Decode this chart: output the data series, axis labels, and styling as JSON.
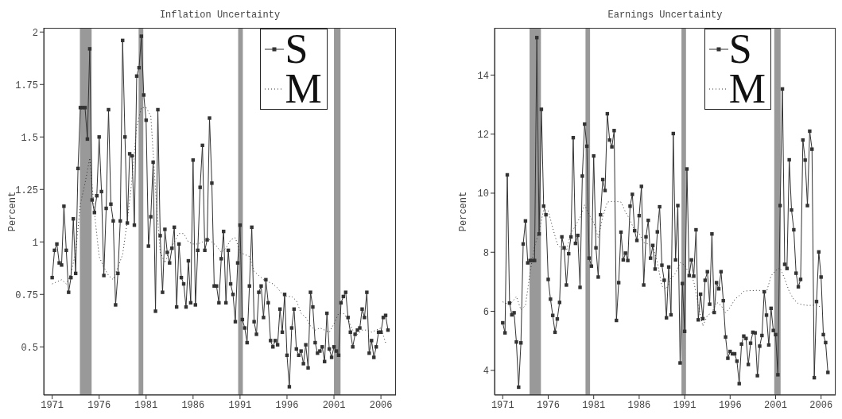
{
  "chart_data": [
    {
      "type": "line",
      "title": "Inflation Uncertainty",
      "ylabel": "Percent",
      "legend": "top",
      "x": [
        1971,
        1971.25,
        1971.5,
        1971.75,
        1972,
        1972.25,
        1972.5,
        1972.75,
        1973,
        1973.25,
        1973.5,
        1973.75,
        1974,
        1974.25,
        1974.5,
        1974.75,
        1975,
        1975.25,
        1975.5,
        1975.75,
        1976,
        1976.25,
        1976.5,
        1976.75,
        1977,
        1977.25,
        1977.5,
        1977.75,
        1978,
        1978.25,
        1978.5,
        1978.75,
        1979,
        1979.25,
        1979.5,
        1979.75,
        1980,
        1980.25,
        1980.5,
        1980.75,
        1981,
        1981.25,
        1981.5,
        1981.75,
        1982,
        1982.25,
        1982.5,
        1982.75,
        1983,
        1983.25,
        1983.5,
        1983.75,
        1984,
        1984.25,
        1984.5,
        1984.75,
        1985,
        1985.25,
        1985.5,
        1985.75,
        1986,
        1986.25,
        1986.5,
        1986.75,
        1987,
        1987.25,
        1987.5,
        1987.75,
        1988,
        1988.25,
        1988.5,
        1988.75,
        1989,
        1989.25,
        1989.5,
        1989.75,
        1990,
        1990.25,
        1990.5,
        1990.75,
        1991,
        1991.25,
        1991.5,
        1991.75,
        1992,
        1992.25,
        1992.5,
        1992.75,
        1993,
        1993.25,
        1993.5,
        1993.75,
        1994,
        1994.25,
        1994.5,
        1994.75,
        1995,
        1995.25,
        1995.5,
        1995.75,
        1996,
        1996.25,
        1996.5,
        1996.75,
        1997,
        1997.25,
        1997.5,
        1997.75,
        1998,
        1998.25,
        1998.5,
        1998.75,
        1999,
        1999.25,
        1999.5,
        1999.75,
        2000,
        2000.25,
        2000.5,
        2000.75,
        2001,
        2001.25,
        2001.5,
        2001.75,
        2002,
        2002.25,
        2002.5,
        2002.75,
        2003,
        2003.25,
        2003.5,
        2003.75,
        2004,
        2004.25,
        2004.5,
        2004.75,
        2005,
        2005.25,
        2005.5,
        2005.75,
        2006,
        2006.25,
        2006.5,
        2006.75
      ],
      "series": [
        {
          "name": "S",
          "color": "#333333",
          "marker": "square",
          "line_style": "solid",
          "values": [
            0.83,
            0.96,
            0.99,
            0.9,
            0.89,
            1.17,
            0.96,
            0.76,
            0.83,
            1.11,
            0.85,
            1.35,
            1.64,
            1.64,
            1.64,
            1.49,
            1.92,
            1.2,
            1.14,
            1.22,
            1.5,
            1.24,
            0.84,
            1.16,
            1.63,
            1.18,
            1.1,
            0.7,
            0.85,
            1.1,
            1.96,
            1.5,
            1.09,
            1.42,
            1.41,
            1.08,
            1.79,
            1.83,
            1.98,
            1.7,
            1.58,
            0.98,
            1.12,
            1.38,
            0.67,
            1.63,
            1.03,
            0.76,
            1.06,
            0.95,
            0.9,
            0.97,
            1.07,
            0.69,
            0.99,
            0.83,
            0.8,
            0.69,
            0.91,
            0.71,
            1.39,
            0.7,
            0.96,
            1.26,
            1.46,
            0.96,
            1.01,
            1.59,
            1.28,
            0.79,
            0.79,
            0.71,
            0.92,
            1.05,
            0.71,
            0.96,
            0.8,
            0.75,
            0.62,
            0.9,
            1.08,
            0.63,
            0.59,
            0.52,
            0.79,
            1.07,
            0.62,
            0.56,
            0.76,
            0.79,
            0.64,
            0.82,
            0.71,
            0.53,
            0.5,
            0.53,
            0.51,
            0.68,
            0.57,
            0.75,
            0.46,
            0.31,
            0.59,
            0.68,
            0.49,
            0.46,
            0.48,
            0.42,
            0.51,
            0.4,
            0.76,
            0.69,
            0.52,
            0.47,
            0.48,
            0.5,
            0.43,
            0.66,
            0.49,
            0.45,
            0.5,
            0.48,
            0.46,
            0.71,
            0.74,
            0.76,
            0.64,
            0.57,
            0.5,
            0.56,
            0.58,
            0.59,
            0.68,
            0.64,
            0.76,
            0.47,
            0.53,
            0.45,
            0.5,
            0.57,
            0.57,
            0.64,
            0.65,
            0.58
          ]
        },
        {
          "name": "M",
          "color": "#333333",
          "marker": "none",
          "line_style": "dotted",
          "x": [
            1971,
            1971.5,
            1972,
            1972.5,
            1973,
            1973.5,
            1974,
            1974.5,
            1975,
            1975.5,
            1976,
            1976.5,
            1977,
            1977.5,
            1978,
            1978.5,
            1979,
            1979.5,
            1980,
            1980.5,
            1981,
            1981.5,
            1982,
            1982.5,
            1983,
            1983.5,
            1984,
            1984.5,
            1985,
            1985.5,
            1986,
            1986.5,
            1987,
            1987.5,
            1988,
            1988.5,
            1989,
            1989.5,
            1990,
            1990.5,
            1991,
            1991.5,
            1992,
            1992.5,
            1993,
            1993.5,
            1994,
            1994.5,
            1995,
            1995.5,
            1996,
            1996.5,
            1997,
            1997.5,
            1998,
            1998.5,
            1999,
            1999.5,
            2000,
            2000.5,
            2001,
            2001.5,
            2002,
            2002.5,
            2003,
            2003.5,
            2004,
            2004.5,
            2005,
            2005.5,
            2006,
            2006.5
          ],
          "values": [
            0.8,
            0.81,
            0.82,
            0.8,
            0.85,
            0.95,
            1.18,
            1.28,
            1.4,
            1.14,
            0.93,
            0.88,
            0.84,
            0.82,
            0.88,
            0.94,
            1.1,
            1.3,
            1.55,
            1.64,
            1.64,
            1.6,
            1.25,
            0.95,
            0.9,
            0.96,
            1.0,
            1.04,
            1.04,
            1.0,
            0.99,
            0.99,
            1.0,
            1.02,
            1.0,
            0.98,
            0.95,
            0.97,
            1.01,
            1.02,
            0.95,
            0.94,
            0.93,
            0.86,
            0.84,
            0.82,
            0.81,
            0.8,
            0.78,
            0.75,
            0.74,
            0.74,
            0.72,
            0.66,
            0.64,
            0.6,
            0.58,
            0.59,
            0.58,
            0.57,
            0.61,
            0.66,
            0.66,
            0.63,
            0.58,
            0.56,
            0.58,
            0.58,
            0.57,
            0.58,
            0.59,
            0.52
          ]
        }
      ],
      "xlim": [
        1970.1,
        2007.6
      ],
      "xticks": [
        1971,
        1976,
        1981,
        1986,
        1991,
        1996,
        2001,
        2006
      ],
      "ylim": [
        0.27,
        2.02
      ],
      "yticks": [
        0.5,
        0.75,
        1,
        1.25,
        1.5,
        1.75,
        2
      ],
      "bands": [
        {
          "axis": "x",
          "from": 1973.95,
          "to": 1975.2,
          "color": "#999999"
        },
        {
          "axis": "x",
          "from": 1980.2,
          "to": 1980.7,
          "color": "#999999"
        },
        {
          "axis": "x",
          "from": 1990.8,
          "to": 1991.3,
          "color": "#999999"
        },
        {
          "axis": "x",
          "from": 2001.0,
          "to": 2001.7,
          "color": "#999999"
        }
      ]
    },
    {
      "type": "line",
      "title": "Earnings Uncertainty",
      "ylabel": "Percent",
      "legend": "top",
      "x": [
        1971,
        1971.25,
        1971.5,
        1971.75,
        1972,
        1972.25,
        1972.5,
        1972.75,
        1973,
        1973.25,
        1973.5,
        1973.75,
        1974,
        1974.25,
        1974.5,
        1974.75,
        1975,
        1975.25,
        1975.5,
        1975.75,
        1976,
        1976.25,
        1976.5,
        1976.75,
        1977,
        1977.25,
        1977.5,
        1977.75,
        1978,
        1978.25,
        1978.5,
        1978.75,
        1979,
        1979.25,
        1979.5,
        1979.75,
        1980,
        1980.25,
        1980.5,
        1980.75,
        1981,
        1981.25,
        1981.5,
        1981.75,
        1982,
        1982.25,
        1982.5,
        1982.75,
        1983,
        1983.25,
        1983.5,
        1983.75,
        1984,
        1984.25,
        1984.5,
        1984.75,
        1985,
        1985.25,
        1985.5,
        1985.75,
        1986,
        1986.25,
        1986.5,
        1986.75,
        1987,
        1987.25,
        1987.5,
        1987.75,
        1988,
        1988.25,
        1988.5,
        1988.75,
        1989,
        1989.25,
        1989.5,
        1989.75,
        1990,
        1990.25,
        1990.5,
        1990.75,
        1991,
        1991.25,
        1991.5,
        1991.75,
        1992,
        1992.25,
        1992.5,
        1992.75,
        1993,
        1993.25,
        1993.5,
        1993.75,
        1994,
        1994.25,
        1994.5,
        1994.75,
        1995,
        1995.25,
        1995.5,
        1995.75,
        1996,
        1996.25,
        1996.5,
        1996.75,
        1997,
        1997.25,
        1997.5,
        1997.75,
        1998,
        1998.25,
        1998.5,
        1998.75,
        1999,
        1999.25,
        1999.5,
        1999.75,
        2000,
        2000.25,
        2000.5,
        2000.75,
        2001,
        2001.25,
        2001.5,
        2001.75,
        2002,
        2002.25,
        2002.5,
        2002.75,
        2003,
        2003.25,
        2003.5,
        2003.75,
        2004,
        2004.25,
        2004.5,
        2004.75,
        2005,
        2005.25,
        2005.5,
        2005.75,
        2006,
        2006.25,
        2006.5,
        2006.75
      ],
      "series": [
        {
          "name": "S",
          "color": "#333333",
          "marker": "square",
          "line_style": "solid",
          "values": [
            5.61,
            5.27,
            10.62,
            6.28,
            5.88,
            5.95,
            4.96,
            3.43,
            4.93,
            8.28,
            9.06,
            7.64,
            7.72,
            7.72,
            7.72,
            15.27,
            8.62,
            12.84,
            9.56,
            9.27,
            7.08,
            6.41,
            5.86,
            5.29,
            5.74,
            6.3,
            8.52,
            8.15,
            6.89,
            7.95,
            8.52,
            11.88,
            8.3,
            8.57,
            6.81,
            10.58,
            12.34,
            11.59,
            7.8,
            7.53,
            11.26,
            8.15,
            7.16,
            9.27,
            10.46,
            10.09,
            12.69,
            11.8,
            11.57,
            12.12,
            5.69,
            6.97,
            8.68,
            7.74,
            7.97,
            7.72,
            9.56,
            9.96,
            8.73,
            8.4,
            9.24,
            10.23,
            6.89,
            8.52,
            9.08,
            7.8,
            8.23,
            7.43,
            8.69,
            9.54,
            7.56,
            7.05,
            5.78,
            7.5,
            5.88,
            12.02,
            7.74,
            9.58,
            4.25,
            6.94,
            5.32,
            10.82,
            7.21,
            7.74,
            7.19,
            8.76,
            5.71,
            6.58,
            5.75,
            7.05,
            7.34,
            6.24,
            8.62,
            5.96,
            6.97,
            6.76,
            7.34,
            6.36,
            5.13,
            4.41,
            4.64,
            4.56,
            4.56,
            4.31,
            3.55,
            4.89,
            5.16,
            5.08,
            4.2,
            4.92,
            5.29,
            5.27,
            3.82,
            4.82,
            5.18,
            6.66,
            5.87,
            4.86,
            6.1,
            5.35,
            5.21,
            3.85,
            9.58,
            13.53,
            7.59,
            7.45,
            11.13,
            9.43,
            8.76,
            7.29,
            6.83,
            7.08,
            11.8,
            11.12,
            9.58,
            12.1,
            11.49,
            3.75,
            6.33,
            8.01,
            7.16,
            5.21,
            4.94,
            3.93
          ]
        },
        {
          "name": "M",
          "color": "#333333",
          "marker": "none",
          "line_style": "dotted",
          "x": [
            1971,
            1971.5,
            1972,
            1972.5,
            1973,
            1973.5,
            1974,
            1974.5,
            1975,
            1975.5,
            1976,
            1976.5,
            1977,
            1977.5,
            1978,
            1978.5,
            1979,
            1979.5,
            1980,
            1980.5,
            1981,
            1981.5,
            1982,
            1982.5,
            1983,
            1983.5,
            1984,
            1984.5,
            1985,
            1985.5,
            1986,
            1986.5,
            1987,
            1987.5,
            1988,
            1988.5,
            1989,
            1989.5,
            1990,
            1990.5,
            1991,
            1991.5,
            1992,
            1992.5,
            1993,
            1993.5,
            1994,
            1994.5,
            1995,
            1995.5,
            1996,
            1996.5,
            1997,
            1997.5,
            1998,
            1998.5,
            1999,
            1999.5,
            2000,
            2000.5,
            2001,
            2001.5,
            2002,
            2002.5,
            2003,
            2003.5,
            2004,
            2004.5,
            2005,
            2005.5,
            2006
          ],
          "values": [
            6.32,
            6.25,
            6.3,
            6.5,
            6.05,
            6.2,
            7.3,
            8.2,
            8.7,
            9.45,
            9.4,
            8.82,
            8.28,
            8.1,
            8.05,
            8.64,
            8.9,
            9.18,
            9.6,
            9.27,
            9.0,
            8.5,
            9.2,
            9.7,
            9.72,
            9.72,
            9.7,
            9.36,
            9.09,
            8.73,
            8.64,
            8.33,
            8.28,
            8.2,
            7.65,
            6.85,
            6.76,
            7.11,
            7.29,
            7.65,
            7.56,
            7.29,
            7.02,
            6.2,
            5.5,
            5.86,
            5.95,
            6.31,
            6.2,
            5.95,
            6.13,
            6.4,
            6.53,
            6.67,
            6.7,
            6.7,
            6.71,
            6.7,
            6.65,
            7.2,
            7.38,
            7.47,
            7.1,
            6.67,
            6.4,
            6.26,
            6.22,
            6.2,
            6.2,
            6.22,
            6.13
          ]
        }
      ],
      "xlim": [
        1970.1,
        2007.6
      ],
      "xticks": [
        1971,
        1976,
        1981,
        1986,
        1991,
        1996,
        2001,
        2006
      ],
      "ylim": [
        3.16,
        15.6
      ],
      "yticks": [
        4,
        6,
        8,
        10,
        12,
        14
      ],
      "bands": [
        {
          "axis": "x",
          "from": 1973.95,
          "to": 1975.2,
          "color": "#999999"
        },
        {
          "axis": "x",
          "from": 1980.1,
          "to": 1980.6,
          "color": "#999999"
        },
        {
          "axis": "x",
          "from": 1990.65,
          "to": 1991.15,
          "color": "#999999"
        },
        {
          "axis": "x",
          "from": 2000.85,
          "to": 2001.55,
          "color": "#999999"
        }
      ]
    }
  ]
}
